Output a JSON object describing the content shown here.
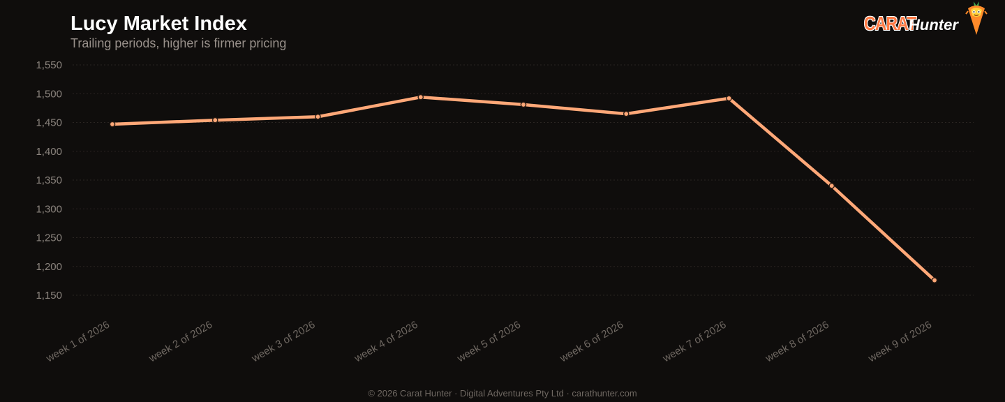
{
  "brand": {
    "wordmark_primary": "CARAT",
    "wordmark_secondary": "Hunter",
    "mascot_icon": "carrot-mascot-icon",
    "accent_color": "#ff7a45"
  },
  "chart_data": {
    "type": "line",
    "title": "Lucy Market Index",
    "subtitle": "Trailing periods, higher is firmer pricing",
    "xlabel": "",
    "ylabel": "",
    "categories": [
      "week 1 of 2026",
      "week 2 of 2026",
      "week 3 of 2026",
      "week 4 of 2026",
      "week 5 of 2026",
      "week 6 of 2026",
      "week 7 of 2026",
      "week 8 of 2026",
      "week 9 of 2026"
    ],
    "series": [
      {
        "values": [
          1447,
          1454,
          1460,
          1494,
          1481,
          1465,
          1492,
          1340,
          1176
        ],
        "color": "#ffa878"
      }
    ],
    "ylim": [
      1150,
      1550
    ],
    "yticks": [
      1550,
      1500,
      1450,
      1400,
      1350,
      1300,
      1250,
      1200,
      1150
    ],
    "ytick_labels": [
      "1,550",
      "1,500",
      "1,450",
      "1,400",
      "1,350",
      "1,300",
      "1,250",
      "1,200",
      "1,150"
    ],
    "grid": true,
    "legend": "none"
  },
  "footer": {
    "text": "© 2026 Carat Hunter · Digital Adventures Pty Ltd · carathunter.com"
  }
}
